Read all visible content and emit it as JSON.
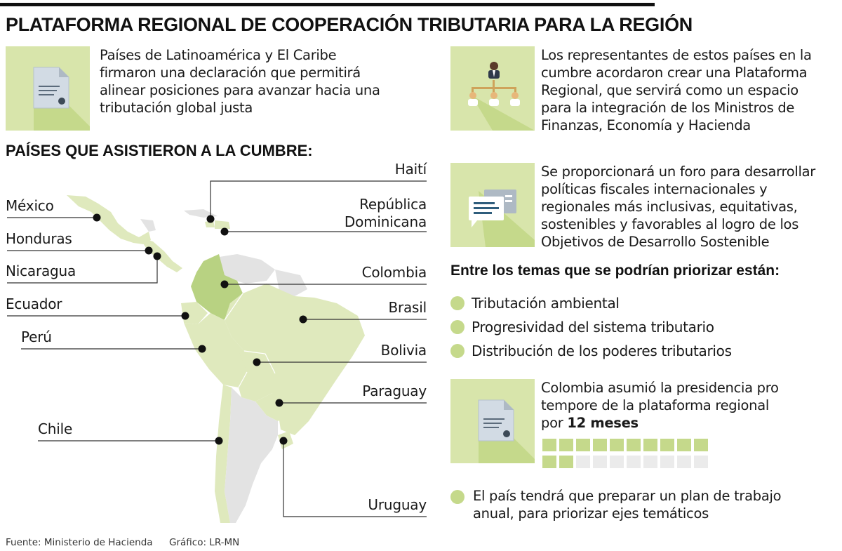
{
  "header": {
    "title": "PLATAFORMA REGIONAL DE COOPERACIÓN TRIBUTARIA PARA LA REGIÓN"
  },
  "intro": {
    "lines": [
      "Países de Latinoamérica y El Caribe",
      "firmaron una declaración que permitirá",
      "alinear posiciones para avanzar hacia una",
      "tributación global justa"
    ],
    "icon": "document-icon"
  },
  "platform": {
    "lines": [
      "Los representantes de estos países en la",
      "cumbre acordaron crear una Plataforma",
      "Regional, que servirá como un espacio",
      "para la integración de los Ministros de",
      "Finanzas, Economía y Hacienda"
    ],
    "icon": "org-chart-icon"
  },
  "forum": {
    "lines": [
      "Se proporcionará un foro para desarrollar",
      "políticas fiscales internacionales y",
      "regionales más inclusivas, equitativas,",
      "sostenibles y favorables al logro de los",
      "Objetivos de Desarrollo Sostenible"
    ],
    "icon": "chat-icon"
  },
  "map_section": {
    "title": "PAÍSES QUE ASISTIERON A LA CUMBRE:",
    "countries": {
      "mexico": "México",
      "honduras": "Honduras",
      "nicaragua": "Nicaragua",
      "ecuador": "Ecuador",
      "peru": "Perú",
      "chile": "Chile",
      "haiti": "Haití",
      "rep_dom_1": "República",
      "rep_dom_2": "Dominicana",
      "colombia": "Colombia",
      "brasil": "Brasil",
      "bolivia": "Bolivia",
      "paraguay": "Paraguay",
      "uruguay": "Uruguay"
    }
  },
  "themes": {
    "title": "Entre los temas que se podrían priorizar están:",
    "items": [
      "Tributación ambiental",
      "Progresividad del sistema tributario",
      "Distribución de los poderes tributarios"
    ]
  },
  "presidency": {
    "line1": "Colombia asumió la presidencia pro",
    "line2": "tempore de la plataforma regional",
    "line3_prefix": "por ",
    "line3_bold": "12 meses",
    "months_filled": 12,
    "months_total": 20,
    "icon": "document-icon"
  },
  "plan": {
    "lines": [
      "El país tendrá que preparar un plan de trabajo",
      "anual, para priorizar ejes temáticos"
    ]
  },
  "footer": {
    "source": "Fuente: Ministerio de Hacienda",
    "credit": "Gráfico: LR-MN"
  },
  "colors": {
    "accent_light": "#d8e5ab",
    "accent_green": "#c5d98b",
    "map_gray": "#e3e3e3",
    "month_empty": "#ebebeb"
  }
}
